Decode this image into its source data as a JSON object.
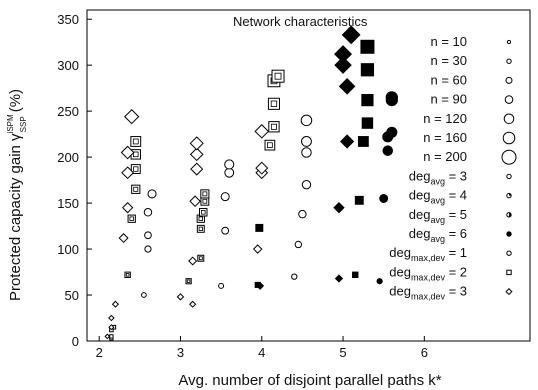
{
  "chart_data": {
    "type": "scatter",
    "title": "",
    "xlabel": "Avg. number of disjoint parallel paths k*",
    "ylabel_main": "Protected capacity gain γ",
    "ylabel_sup": "iSPM",
    "ylabel_sub": "SSP",
    "ylabel_unit": "(%)",
    "xlim": [
      1.85,
      7.3
    ],
    "ylim": [
      0,
      360
    ],
    "xticks": [
      2,
      3,
      4,
      5,
      6
    ],
    "yticks": [
      0,
      50,
      100,
      150,
      200,
      250,
      300,
      350
    ],
    "grid": false,
    "legend_title": "Network characteristics",
    "legend_position": "top-right",
    "legend": [
      {
        "label": "n = 10",
        "marker": "circle",
        "size": "xs",
        "fill": "none"
      },
      {
        "label": "n = 30",
        "marker": "circle",
        "size": "s",
        "fill": "none"
      },
      {
        "label": "n = 60",
        "marker": "circle",
        "size": "m",
        "fill": "none"
      },
      {
        "label": "n = 90",
        "marker": "circle",
        "size": "l",
        "fill": "none"
      },
      {
        "label": "n = 120",
        "marker": "circle",
        "size": "xl",
        "fill": "none"
      },
      {
        "label": "n = 160",
        "marker": "circle",
        "size": "xxl",
        "fill": "none"
      },
      {
        "label": "n = 200",
        "marker": "circle",
        "size": "xxxl",
        "fill": "none"
      },
      {
        "label_base": "deg",
        "label_sub": "avg",
        "label_rest": " =  3",
        "marker": "circle",
        "size": "s",
        "fill": "none"
      },
      {
        "label_base": "deg",
        "label_sub": "avg",
        "label_rest": " =  4",
        "marker": "circle",
        "size": "s",
        "fill": "quarter"
      },
      {
        "label_base": "deg",
        "label_sub": "avg",
        "label_rest": " =  5",
        "marker": "circle",
        "size": "s",
        "fill": "half"
      },
      {
        "label_base": "deg",
        "label_sub": "avg",
        "label_rest": " =  6",
        "marker": "circle",
        "size": "s",
        "fill": "full"
      },
      {
        "label_base": "deg",
        "label_sub": "max,dev",
        "label_rest": " =  1",
        "marker": "circle",
        "size": "s",
        "fill": "none"
      },
      {
        "label_base": "deg",
        "label_sub": "max,dev",
        "label_rest": " =  2",
        "marker": "square",
        "size": "s",
        "fill": "none"
      },
      {
        "label_base": "deg",
        "label_sub": "max,dev",
        "label_rest": " =  3",
        "marker": "diamond",
        "size": "s",
        "fill": "none"
      }
    ],
    "series": [
      {
        "marker": "circle",
        "fill": "none",
        "points": [
          [
            2.55,
            50
          ],
          [
            2.6,
            100
          ],
          [
            2.6,
            115
          ],
          [
            2.6,
            140
          ],
          [
            2.65,
            160
          ],
          [
            3.5,
            60
          ],
          [
            3.55,
            120
          ],
          [
            3.55,
            157
          ],
          [
            3.6,
            183
          ],
          [
            3.6,
            192
          ],
          [
            4.4,
            70
          ],
          [
            4.45,
            105
          ],
          [
            4.5,
            138
          ],
          [
            4.55,
            170
          ],
          [
            4.55,
            205
          ],
          [
            4.55,
            217
          ],
          [
            4.55,
            240
          ]
        ]
      },
      {
        "marker": "circle",
        "fill": "full",
        "points": [
          [
            5.45,
            65
          ],
          [
            5.5,
            155
          ],
          [
            5.55,
            207
          ],
          [
            5.55,
            222
          ],
          [
            5.6,
            227
          ],
          [
            5.6,
            262
          ],
          [
            5.6,
            265
          ]
        ]
      },
      {
        "marker": "square",
        "fill": "none",
        "points": [
          [
            2.15,
            3
          ],
          [
            2.15,
            5
          ],
          [
            2.15,
            12
          ],
          [
            2.18,
            15
          ],
          [
            2.35,
            72
          ],
          [
            2.4,
            133
          ],
          [
            2.45,
            165
          ],
          [
            2.45,
            187
          ],
          [
            2.45,
            203
          ],
          [
            2.45,
            217
          ],
          [
            3.1,
            65
          ],
          [
            3.25,
            90
          ],
          [
            3.25,
            122
          ],
          [
            3.25,
            133
          ],
          [
            3.28,
            140
          ],
          [
            3.3,
            152
          ],
          [
            3.3,
            160
          ],
          [
            4.1,
            213
          ],
          [
            4.15,
            233
          ],
          [
            4.15,
            258
          ],
          [
            4.15,
            283
          ],
          [
            4.2,
            288
          ]
        ]
      },
      {
        "marker": "square",
        "fill": "full",
        "points": [
          [
            3.95,
            61
          ],
          [
            3.97,
            123
          ],
          [
            5.15,
            72
          ],
          [
            5.2,
            153
          ],
          [
            5.25,
            217
          ],
          [
            5.3,
            237
          ],
          [
            5.3,
            262
          ],
          [
            5.3,
            295
          ],
          [
            5.3,
            320
          ]
        ]
      },
      {
        "marker": "diamond",
        "fill": "none",
        "points": [
          [
            2.1,
            5
          ],
          [
            2.15,
            15
          ],
          [
            2.15,
            25
          ],
          [
            2.2,
            40
          ],
          [
            2.3,
            112
          ],
          [
            2.35,
            145
          ],
          [
            2.35,
            183
          ],
          [
            2.35,
            205
          ],
          [
            2.4,
            244
          ],
          [
            3.0,
            48
          ],
          [
            3.15,
            40
          ],
          [
            3.15,
            87
          ],
          [
            3.18,
            152
          ],
          [
            3.2,
            187
          ],
          [
            3.2,
            203
          ],
          [
            3.2,
            215
          ],
          [
            3.95,
            100
          ],
          [
            4.0,
            183
          ],
          [
            4.0,
            188
          ],
          [
            4.0,
            228
          ]
        ]
      },
      {
        "marker": "diamond",
        "fill": "full",
        "points": [
          [
            3.98,
            60
          ],
          [
            4.95,
            68
          ],
          [
            4.95,
            145
          ],
          [
            5.05,
            217
          ],
          [
            5.05,
            277
          ],
          [
            5.0,
            300
          ],
          [
            5.0,
            312
          ],
          [
            5.1,
            333
          ]
        ]
      }
    ]
  }
}
